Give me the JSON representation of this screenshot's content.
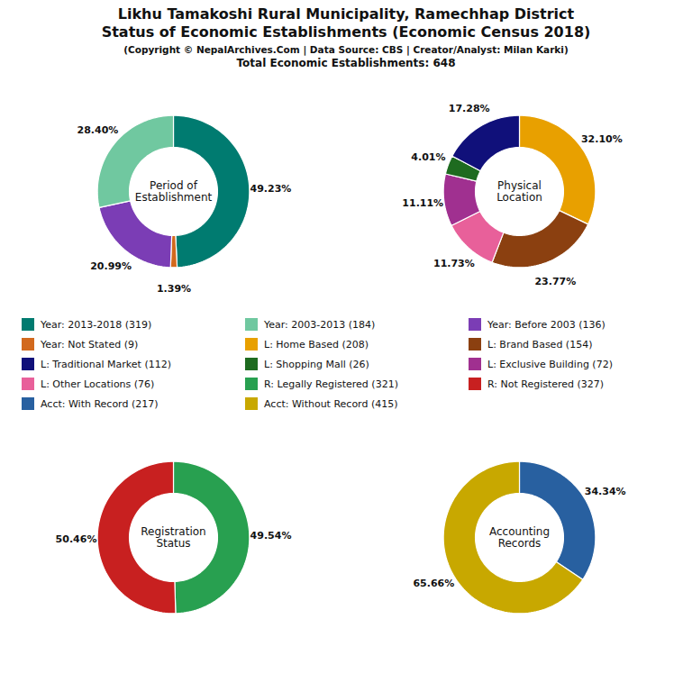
{
  "title": "Likhu Tamakoshi Rural Municipality, Ramechhap District\nStatus of Economic Establishments (Economic Census 2018)",
  "subtitle": "(Copyright © NepalArchives.Com | Data Source: CBS | Creator/Analyst: Milan Karki)",
  "note": "Total Economic Establishments: 648",
  "legend_entries": [
    {
      "name": "Year: 2013-2018 (319)",
      "color": "#007b70"
    },
    {
      "name": "Year: 2003-2013 (184)",
      "color": "#70c8a0"
    },
    {
      "name": "Year: Before 2003 (136)",
      "color": "#7b3db5"
    },
    {
      "name": "Year: Not Stated (9)",
      "color": "#d2691e"
    },
    {
      "name": "L: Home Based (208)",
      "color": "#e8a000"
    },
    {
      "name": "L: Brand Based (154)",
      "color": "#8B4010"
    },
    {
      "name": "L: Traditional Market (112)",
      "color": "#10107a"
    },
    {
      "name": "L: Shopping Mall (26)",
      "color": "#1e6b20"
    },
    {
      "name": "L: Exclusive Building (72)",
      "color": "#a03090"
    },
    {
      "name": "L: Other Locations (76)",
      "color": "#e8609a"
    },
    {
      "name": "R: Legally Registered (321)",
      "color": "#28a050"
    },
    {
      "name": "R: Not Registered (327)",
      "color": "#c82020"
    },
    {
      "name": "Acct: With Record (217)",
      "color": "#2860a0"
    },
    {
      "name": "Acct: Without Record (415)",
      "color": "#c8a800"
    }
  ],
  "chart_data": [
    {
      "type": "donut",
      "center_label": "Period of\nEstablishment",
      "values": [
        49.23,
        1.39,
        20.99,
        28.4
      ],
      "value_labels": [
        "49.23%",
        "1.39%",
        "20.99%",
        "28.40%"
      ],
      "colors": [
        "#007b70",
        "#d2691e",
        "#7b3db5",
        "#70c8a0"
      ],
      "data_labels": true
    },
    {
      "type": "donut",
      "center_label": "Physical\nLocation",
      "values": [
        32.1,
        23.77,
        11.73,
        11.11,
        4.01,
        17.28
      ],
      "value_labels": [
        "32.10%",
        "23.77%",
        "11.73%",
        "11.11%",
        "4.01%",
        "17.28%"
      ],
      "colors": [
        "#e8a000",
        "#8B4010",
        "#e8609a",
        "#a03090",
        "#1e6b20",
        "#10107a"
      ],
      "data_labels": true
    },
    {
      "type": "donut",
      "center_label": "Registration\nStatus",
      "values": [
        49.54,
        50.46
      ],
      "value_labels": [
        "49.54%",
        "50.46%"
      ],
      "colors": [
        "#28a050",
        "#c82020"
      ],
      "data_labels": true
    },
    {
      "type": "donut",
      "center_label": "Accounting\nRecords",
      "values": [
        34.34,
        65.66
      ],
      "value_labels": [
        "34.34%",
        "65.66%"
      ],
      "colors": [
        "#2860a0",
        "#c8a800"
      ],
      "data_labels": true
    }
  ]
}
